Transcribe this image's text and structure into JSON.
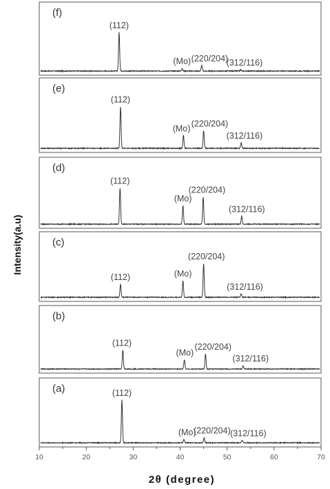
{
  "chart_data": {
    "type": "line",
    "xlabel": "2θ (degree)",
    "ylabel": "Intensity(a.u)",
    "xlim": [
      10,
      70
    ],
    "x_ticks": [
      10,
      20,
      30,
      40,
      50,
      60,
      70
    ],
    "x_tick_labels": [
      "10",
      "20",
      "30",
      "40",
      "50",
      "60",
      "70"
    ],
    "grid": false,
    "legend": "none",
    "line_color": "#333333",
    "panels": [
      {
        "name": "(f)",
        "peaks": [
          {
            "x": 27.0,
            "height": 0.85
          },
          {
            "x": 40.4,
            "height": 0.06
          },
          {
            "x": 44.6,
            "height": 0.12
          },
          {
            "x": 52.9,
            "height": 0.03
          }
        ],
        "labels": [
          {
            "text": "(112)",
            "x": 27.0
          },
          {
            "text": "(Mo)",
            "x": 40.4
          },
          {
            "text": "(220/204)",
            "x": 46.3
          },
          {
            "text": "(312/116)",
            "x": 53.7
          }
        ]
      },
      {
        "name": "(e)",
        "peaks": [
          {
            "x": 27.3,
            "height": 0.9
          },
          {
            "x": 40.7,
            "height": 0.28
          },
          {
            "x": 45.0,
            "height": 0.38
          },
          {
            "x": 53.0,
            "height": 0.12
          }
        ],
        "labels": [
          {
            "text": "(112)",
            "x": 27.3
          },
          {
            "text": "(Mo)",
            "x": 40.3
          },
          {
            "text": "(220/204)",
            "x": 46.3
          },
          {
            "text": "(312/116)",
            "x": 53.7
          }
        ]
      },
      {
        "name": "(d)",
        "peaks": [
          {
            "x": 27.2,
            "height": 0.82
          },
          {
            "x": 40.6,
            "height": 0.42
          },
          {
            "x": 44.9,
            "height": 0.62
          },
          {
            "x": 53.1,
            "height": 0.18
          }
        ],
        "labels": [
          {
            "text": "(112)",
            "x": 27.2
          },
          {
            "text": "(Mo)",
            "x": 40.6
          },
          {
            "text": "(220/204)",
            "x": 45.7
          },
          {
            "text": "(312/116)",
            "x": 54.2
          }
        ]
      },
      {
        "name": "(c)",
        "peaks": [
          {
            "x": 27.3,
            "height": 0.3
          },
          {
            "x": 40.6,
            "height": 0.38
          },
          {
            "x": 45.0,
            "height": 0.78
          },
          {
            "x": 53.0,
            "height": 0.08
          }
        ],
        "labels": [
          {
            "text": "(112)",
            "x": 27.3
          },
          {
            "text": "(Mo)",
            "x": 40.6
          },
          {
            "text": "(220/204)",
            "x": 45.6
          },
          {
            "text": "(312/116)",
            "x": 53.8
          }
        ]
      },
      {
        "name": "(b)",
        "peaks": [
          {
            "x": 27.8,
            "height": 0.45
          },
          {
            "x": 40.9,
            "height": 0.22
          },
          {
            "x": 45.4,
            "height": 0.36
          },
          {
            "x": 53.4,
            "height": 0.08
          }
        ],
        "labels": [
          {
            "text": "(112)",
            "x": 27.6
          },
          {
            "text": "(Mo)",
            "x": 41.0
          },
          {
            "text": "(220/204)",
            "x": 47.0
          },
          {
            "text": "(312/116)",
            "x": 55.0
          }
        ]
      },
      {
        "name": "(a)",
        "peaks": [
          {
            "x": 27.6,
            "height": 1.0
          },
          {
            "x": 40.8,
            "height": 0.08
          },
          {
            "x": 45.1,
            "height": 0.12
          },
          {
            "x": 53.2,
            "height": 0.06
          }
        ],
        "labels": [
          {
            "text": "(112)",
            "x": 27.6
          },
          {
            "text": "(Mo)",
            "x": 41.5
          },
          {
            "text": "(220/204)",
            "x": 46.8
          },
          {
            "text": "(312/116)",
            "x": 54.5
          }
        ]
      }
    ]
  }
}
